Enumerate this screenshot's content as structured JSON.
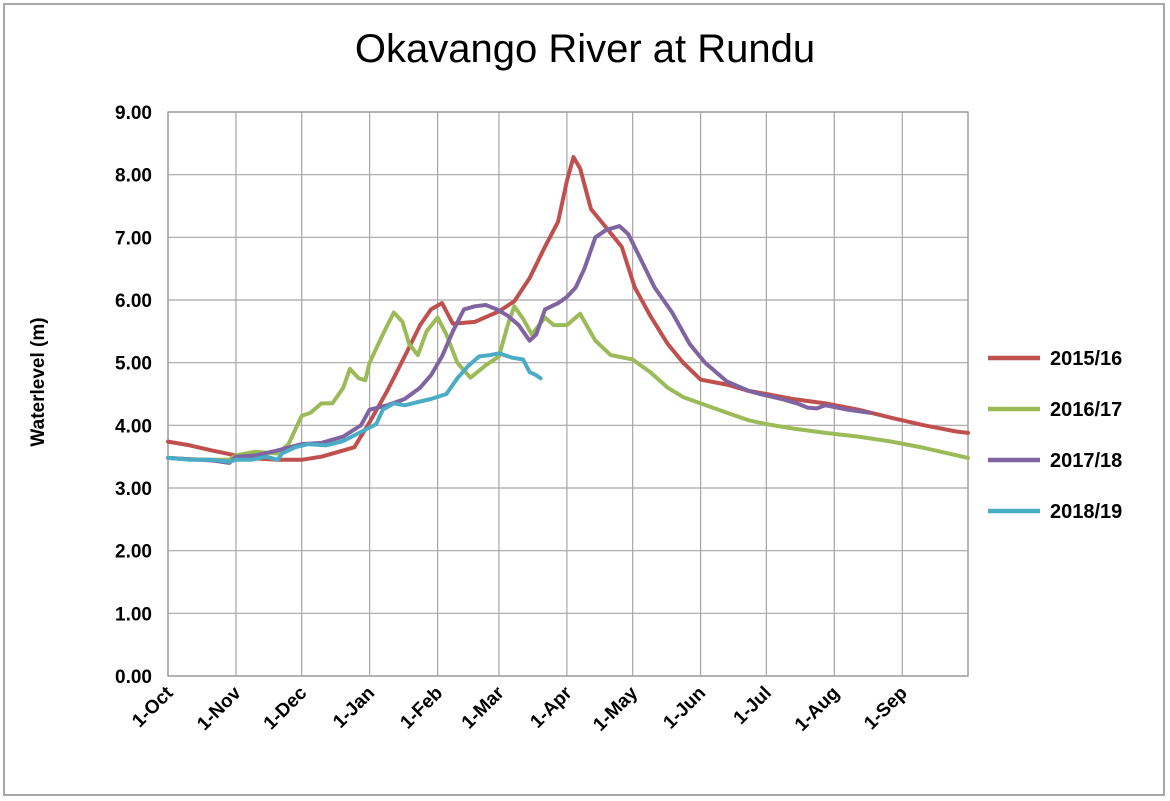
{
  "chart_data": {
    "type": "line",
    "title": "Okavango River at Rundu",
    "ylabel": "Waterlevel (m)",
    "xlabel": "",
    "ylim": [
      0,
      9
    ],
    "xlim_days": [
      0,
      365
    ],
    "grid": true,
    "legend_position": "right",
    "y_ticks": [
      "0.00",
      "1.00",
      "2.00",
      "3.00",
      "4.00",
      "5.00",
      "6.00",
      "7.00",
      "8.00",
      "9.00"
    ],
    "x_ticks": [
      {
        "label": "1-Oct",
        "day": 0
      },
      {
        "label": "1-Nov",
        "day": 31
      },
      {
        "label": "1-Dec",
        "day": 61
      },
      {
        "label": "1-Jan",
        "day": 92
      },
      {
        "label": "1-Feb",
        "day": 123
      },
      {
        "label": "1-Mar",
        "day": 151
      },
      {
        "label": "1-Apr",
        "day": 182
      },
      {
        "label": "1-May",
        "day": 212
      },
      {
        "label": "1-Jun",
        "day": 243
      },
      {
        "label": "1-Jul",
        "day": 273
      },
      {
        "label": "1-Aug",
        "day": 304
      },
      {
        "label": "1-Sep",
        "day": 335
      }
    ],
    "series": [
      {
        "name": "2015/16",
        "color": "#c0504d",
        "points": [
          [
            0,
            3.74
          ],
          [
            10,
            3.68
          ],
          [
            20,
            3.6
          ],
          [
            31,
            3.52
          ],
          [
            40,
            3.47
          ],
          [
            50,
            3.45
          ],
          [
            61,
            3.45
          ],
          [
            70,
            3.5
          ],
          [
            78,
            3.58
          ],
          [
            85,
            3.65
          ],
          [
            92,
            4.05
          ],
          [
            100,
            4.55
          ],
          [
            108,
            5.1
          ],
          [
            115,
            5.6
          ],
          [
            120,
            5.85
          ],
          [
            125,
            5.95
          ],
          [
            130,
            5.62
          ],
          [
            140,
            5.65
          ],
          [
            151,
            5.82
          ],
          [
            158,
            5.98
          ],
          [
            165,
            6.35
          ],
          [
            172,
            6.85
          ],
          [
            178,
            7.25
          ],
          [
            182,
            7.9
          ],
          [
            185,
            8.28
          ],
          [
            188,
            8.1
          ],
          [
            193,
            7.45
          ],
          [
            200,
            7.15
          ],
          [
            207,
            6.85
          ],
          [
            213,
            6.2
          ],
          [
            220,
            5.75
          ],
          [
            228,
            5.3
          ],
          [
            235,
            5.0
          ],
          [
            243,
            4.73
          ],
          [
            255,
            4.65
          ],
          [
            265,
            4.55
          ],
          [
            273,
            4.5
          ],
          [
            285,
            4.42
          ],
          [
            300,
            4.35
          ],
          [
            315,
            4.25
          ],
          [
            330,
            4.12
          ],
          [
            345,
            4.0
          ],
          [
            360,
            3.9
          ],
          [
            365,
            3.88
          ]
        ]
      },
      {
        "name": "2016/17",
        "color": "#9bbb59",
        "points": [
          [
            0,
            3.48
          ],
          [
            10,
            3.46
          ],
          [
            20,
            3.45
          ],
          [
            28,
            3.45
          ],
          [
            31,
            3.52
          ],
          [
            40,
            3.58
          ],
          [
            50,
            3.55
          ],
          [
            55,
            3.7
          ],
          [
            61,
            4.15
          ],
          [
            65,
            4.2
          ],
          [
            70,
            4.35
          ],
          [
            75,
            4.35
          ],
          [
            80,
            4.6
          ],
          [
            83,
            4.9
          ],
          [
            87,
            4.75
          ],
          [
            90,
            4.72
          ],
          [
            92,
            5.0
          ],
          [
            98,
            5.45
          ],
          [
            103,
            5.8
          ],
          [
            107,
            5.65
          ],
          [
            110,
            5.3
          ],
          [
            114,
            5.12
          ],
          [
            118,
            5.5
          ],
          [
            123,
            5.72
          ],
          [
            127,
            5.45
          ],
          [
            132,
            5.0
          ],
          [
            138,
            4.76
          ],
          [
            145,
            4.96
          ],
          [
            151,
            5.1
          ],
          [
            155,
            5.6
          ],
          [
            158,
            5.9
          ],
          [
            162,
            5.7
          ],
          [
            166,
            5.45
          ],
          [
            172,
            5.72
          ],
          [
            176,
            5.6
          ],
          [
            182,
            5.6
          ],
          [
            188,
            5.78
          ],
          [
            195,
            5.35
          ],
          [
            202,
            5.12
          ],
          [
            212,
            5.05
          ],
          [
            220,
            4.85
          ],
          [
            228,
            4.6
          ],
          [
            235,
            4.45
          ],
          [
            243,
            4.35
          ],
          [
            255,
            4.2
          ],
          [
            265,
            4.08
          ],
          [
            273,
            4.02
          ],
          [
            285,
            3.95
          ],
          [
            300,
            3.88
          ],
          [
            315,
            3.82
          ],
          [
            330,
            3.74
          ],
          [
            345,
            3.64
          ],
          [
            360,
            3.52
          ],
          [
            365,
            3.48
          ]
        ]
      },
      {
        "name": "2017/18",
        "color": "#8064a2",
        "points": [
          [
            0,
            3.48
          ],
          [
            10,
            3.46
          ],
          [
            20,
            3.44
          ],
          [
            28,
            3.4
          ],
          [
            31,
            3.5
          ],
          [
            40,
            3.52
          ],
          [
            50,
            3.6
          ],
          [
            61,
            3.7
          ],
          [
            70,
            3.72
          ],
          [
            80,
            3.82
          ],
          [
            88,
            4.0
          ],
          [
            92,
            4.25
          ],
          [
            100,
            4.32
          ],
          [
            108,
            4.42
          ],
          [
            115,
            4.6
          ],
          [
            120,
            4.8
          ],
          [
            125,
            5.1
          ],
          [
            130,
            5.5
          ],
          [
            135,
            5.85
          ],
          [
            140,
            5.9
          ],
          [
            145,
            5.92
          ],
          [
            150,
            5.85
          ],
          [
            155,
            5.75
          ],
          [
            160,
            5.6
          ],
          [
            165,
            5.35
          ],
          [
            168,
            5.45
          ],
          [
            172,
            5.85
          ],
          [
            178,
            5.95
          ],
          [
            182,
            6.05
          ],
          [
            186,
            6.2
          ],
          [
            190,
            6.5
          ],
          [
            195,
            7.0
          ],
          [
            200,
            7.12
          ],
          [
            206,
            7.18
          ],
          [
            210,
            7.05
          ],
          [
            215,
            6.7
          ],
          [
            222,
            6.2
          ],
          [
            230,
            5.8
          ],
          [
            238,
            5.3
          ],
          [
            245,
            5.0
          ],
          [
            255,
            4.7
          ],
          [
            265,
            4.55
          ],
          [
            270,
            4.5
          ],
          [
            280,
            4.42
          ],
          [
            287,
            4.35
          ],
          [
            292,
            4.28
          ],
          [
            296,
            4.27
          ],
          [
            300,
            4.32
          ],
          [
            310,
            4.25
          ],
          [
            320,
            4.2
          ]
        ]
      },
      {
        "name": "2018/19",
        "color": "#4bacc6",
        "points": [
          [
            0,
            3.48
          ],
          [
            10,
            3.45
          ],
          [
            20,
            3.45
          ],
          [
            28,
            3.42
          ],
          [
            31,
            3.45
          ],
          [
            38,
            3.45
          ],
          [
            45,
            3.5
          ],
          [
            50,
            3.45
          ],
          [
            52,
            3.55
          ],
          [
            58,
            3.65
          ],
          [
            64,
            3.7
          ],
          [
            72,
            3.68
          ],
          [
            80,
            3.75
          ],
          [
            95,
            4.02
          ],
          [
            98,
            4.25
          ],
          [
            103,
            4.35
          ],
          [
            108,
            4.32
          ],
          [
            115,
            4.38
          ],
          [
            120,
            4.42
          ],
          [
            127,
            4.5
          ],
          [
            132,
            4.75
          ],
          [
            137,
            4.95
          ],
          [
            142,
            5.1
          ],
          [
            147,
            5.12
          ],
          [
            151,
            5.15
          ],
          [
            157,
            5.08
          ],
          [
            162,
            5.05
          ],
          [
            165,
            4.85
          ],
          [
            168,
            4.8
          ],
          [
            170,
            4.75
          ]
        ]
      }
    ]
  }
}
